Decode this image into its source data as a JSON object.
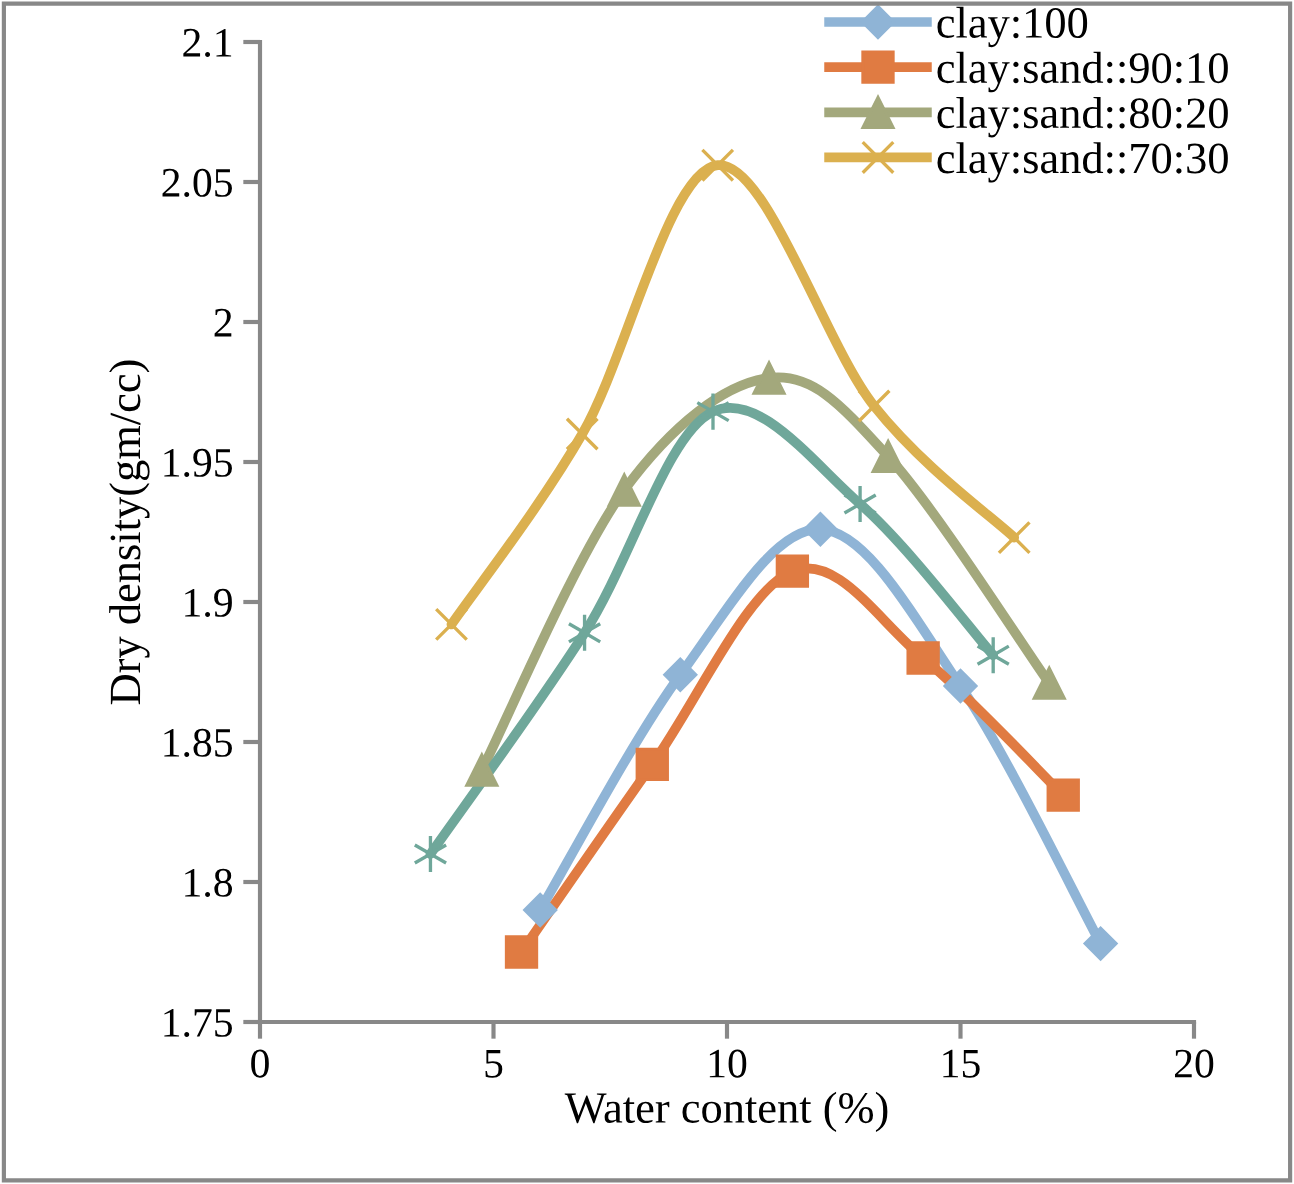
{
  "chart_data": {
    "type": "line",
    "xlabel": "Water content (%)",
    "ylabel": "Dry density(gm/cc)",
    "xlim": [
      0,
      20
    ],
    "xticks": [
      0,
      5,
      10,
      15,
      20
    ],
    "ylim": [
      1.75,
      2.1
    ],
    "yticks": [
      1.75,
      1.8,
      1.85,
      1.9,
      1.95,
      2,
      2.05,
      2.1
    ],
    "grid": false,
    "legend": "top right",
    "series": [
      {
        "name": "clay:100",
        "color": "#8fb4d6",
        "marker": "diamond",
        "x": [
          6,
          9,
          12,
          15,
          18
        ],
        "values": [
          1.79,
          1.874,
          1.926,
          1.87,
          1.778
        ]
      },
      {
        "name": "clay:sand::90:10",
        "color": "#e07b42",
        "marker": "square",
        "x": [
          5.6,
          8.4,
          11.4,
          14.2,
          17.2
        ],
        "values": [
          1.775,
          1.842,
          1.911,
          1.88,
          1.831
        ]
      },
      {
        "name": "clay:sand::80:20",
        "color": "#a3a87c",
        "marker": "triangle",
        "x": [
          4.75,
          7.8,
          10.9,
          13.45,
          16.9
        ],
        "values": [
          1.84,
          1.94,
          1.98,
          1.952,
          1.871
        ]
      },
      {
        "name": "clay:sand::70:30",
        "color": "#dbb04f",
        "marker": "cross",
        "x": [
          4.1,
          6.9,
          9.8,
          13.15,
          16.15
        ],
        "values": [
          1.892,
          1.96,
          2.056,
          1.97,
          1.923
        ]
      },
      {
        "color": "#6fa79a",
        "marker": "cross",
        "x": [
          3.65,
          6.95,
          9.7,
          12.85,
          15.7
        ],
        "values": [
          1.81,
          1.889,
          1.968,
          1.935,
          1.881
        ]
      }
    ]
  }
}
